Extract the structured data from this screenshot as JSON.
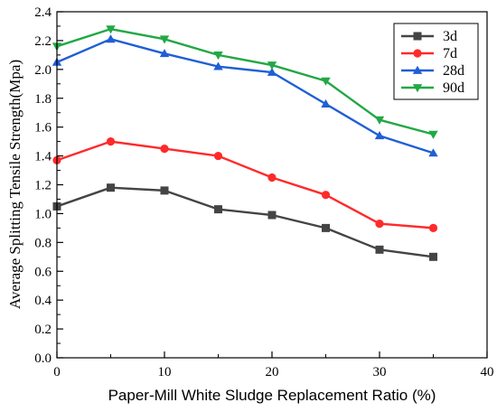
{
  "chart_data": {
    "type": "line",
    "xlabel": "Paper-Mill White Sludge Replacement Ratio (%)",
    "ylabel": "Average Splitting Tensile Strength(Mpa)",
    "xlim": [
      0,
      40
    ],
    "ylim": [
      0.0,
      2.4
    ],
    "xticks": [
      "0",
      "10",
      "20",
      "30",
      "40"
    ],
    "yticks": [
      "0.0",
      "0.2",
      "0.4",
      "0.6",
      "0.8",
      "1.0",
      "1.2",
      "1.4",
      "1.6",
      "1.8",
      "2.0",
      "2.2",
      "2.4"
    ],
    "x": [
      0,
      5,
      10,
      15,
      20,
      25,
      30,
      35
    ],
    "grid": false,
    "legend_position": "top-right",
    "series": [
      {
        "name": "3d",
        "color": "#444444",
        "marker": "square",
        "values": [
          1.05,
          1.18,
          1.16,
          1.03,
          0.99,
          0.9,
          0.75,
          0.7
        ]
      },
      {
        "name": "7d",
        "color": "#ff2a2a",
        "marker": "circle",
        "values": [
          1.37,
          1.5,
          1.45,
          1.4,
          1.25,
          1.13,
          0.93,
          0.9
        ]
      },
      {
        "name": "28d",
        "color": "#1f5fd6",
        "marker": "triangle-up",
        "values": [
          2.05,
          2.21,
          2.11,
          2.02,
          1.98,
          1.76,
          1.54,
          1.42
        ]
      },
      {
        "name": "90d",
        "color": "#22a845",
        "marker": "triangle-down",
        "values": [
          2.16,
          2.28,
          2.21,
          2.1,
          2.03,
          1.92,
          1.65,
          1.55
        ]
      }
    ]
  }
}
